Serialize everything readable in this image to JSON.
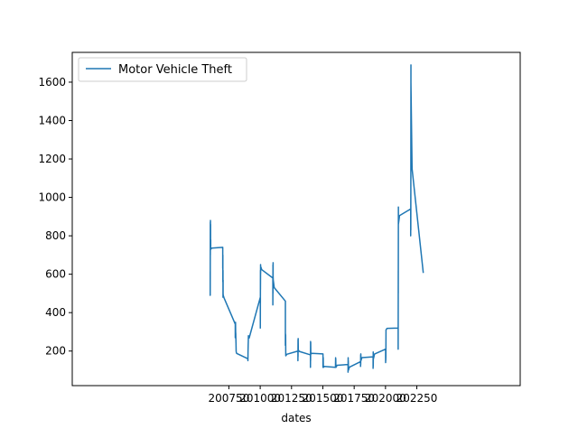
{
  "chart_data": {
    "type": "line",
    "title": "",
    "xlabel": "dates",
    "ylabel": "",
    "xlim": [
      199500,
      203075
    ],
    "ylim": [
      20,
      1755
    ],
    "x_ticks": [
      200750,
      201000,
      201250,
      201500,
      201750,
      202000,
      202250
    ],
    "x_tick_labels": [
      "200750",
      "201000",
      "201250",
      "201500",
      "201750",
      "202000",
      "202250"
    ],
    "y_ticks": [
      200,
      400,
      600,
      800,
      1000,
      1200,
      1400,
      1600
    ],
    "y_tick_labels": [
      "200",
      "400",
      "600",
      "800",
      "1000",
      "1200",
      "1400",
      "1600"
    ],
    "grid": false,
    "legend_position": "top-left",
    "series": [
      {
        "name": "Motor Vehicle Theft",
        "color": "#1f77b4",
        "x": [
          200601,
          200601,
          200602,
          200602,
          200603,
          200603,
          200604,
          200604,
          200605,
          200605,
          200606,
          200607,
          200608,
          200609,
          200610,
          200611,
          200612,
          200701,
          200701,
          200702,
          200702,
          200703,
          200703,
          200704,
          200704,
          200705,
          200706,
          200707,
          200708,
          200709,
          200710,
          200711,
          200712,
          200801,
          200801,
          200802,
          200802,
          200803,
          200804,
          200805,
          200806,
          200807,
          200808,
          200809,
          200810,
          200811,
          200812,
          200901,
          200902,
          200903,
          200904,
          200905,
          200906,
          200907,
          200908,
          200909,
          200910,
          200911,
          200912,
          201001,
          201001,
          201002,
          201002,
          201003,
          201003,
          201004,
          201005,
          201006,
          201007,
          201008,
          201009,
          201010,
          201011,
          201012,
          201101,
          201101,
          201102,
          201102,
          201103,
          201103,
          201104,
          201105,
          201106,
          201107,
          201108,
          201109,
          201110,
          201111,
          201112,
          201201,
          201201,
          201202,
          201202,
          201203,
          201204,
          201205,
          201206,
          201207,
          201208,
          201209,
          201210,
          201211,
          201212,
          201301,
          201301,
          201302,
          201302,
          201303,
          201304,
          201305,
          201306,
          201307,
          201308,
          201309,
          201310,
          201311,
          201312,
          201401,
          201401,
          201402,
          201402,
          201403,
          201404,
          201405,
          201406,
          201407,
          201408,
          201409,
          201410,
          201411,
          201412,
          201501,
          201501,
          201502,
          201502,
          201503,
          201504,
          201505,
          201506,
          201507,
          201508,
          201509,
          201510,
          201511,
          201512,
          201601,
          201601,
          201602,
          201602,
          201603,
          201604,
          201605,
          201606,
          201607,
          201608,
          201609,
          201610,
          201611,
          201612,
          201701,
          201701,
          201702,
          201702,
          201703,
          201704,
          201705,
          201706,
          201707,
          201708,
          201709,
          201710,
          201711,
          201712,
          201801,
          201801,
          201802,
          201802,
          201803,
          201804,
          201805,
          201806,
          201807,
          201808,
          201809,
          201810,
          201811,
          201812,
          201901,
          201901,
          201902,
          201902,
          201903,
          201904,
          201905,
          201906,
          201907,
          201908,
          201909,
          201910,
          201911,
          201912,
          202001,
          202001,
          202002,
          202002,
          202003,
          202004,
          202005,
          202006,
          202007,
          202008,
          202009,
          202010,
          202011,
          202012,
          202101,
          202101,
          202102,
          202102,
          202103,
          202103,
          202104,
          202105,
          202106,
          202107,
          202108,
          202109,
          202110,
          202111,
          202112,
          202201,
          202201,
          202202,
          202202,
          202203,
          202203,
          202204,
          202205,
          202206,
          202207,
          202208,
          202209,
          202210,
          202211,
          202212,
          202301
        ],
        "y": [
          610,
          490,
          870,
          700,
          880,
          740,
          860,
          730,
          780,
          735,
          730,
          731,
          732,
          733,
          734,
          735,
          736,
          740,
          630,
          700,
          560,
          620,
          480,
          570,
          500,
          490,
          488,
          486,
          484,
          482,
          480,
          478,
          476,
          340,
          270,
          340,
          280,
          350,
          300,
          290,
          260,
          240,
          200,
          195,
          192,
          190,
          188,
          160,
          150,
          200,
          230,
          250,
          280,
          278,
          276,
          274,
          272,
          270,
          268,
          480,
          320,
          620,
          520,
          650,
          600,
          640,
          638,
          636,
          634,
          632,
          630,
          628,
          626,
          624,
          580,
          440,
          650,
          500,
          660,
          590,
          570,
          565,
          560,
          555,
          550,
          545,
          540,
          535,
          530,
          460,
          230,
          290,
          240,
          285,
          175,
          176,
          177,
          178,
          179,
          180,
          181,
          182,
          183,
          200,
          150,
          260,
          170,
          265,
          205,
          205,
          204,
          203,
          202,
          201,
          200,
          199,
          198,
          180,
          115,
          250,
          150,
          245,
          185,
          185,
          185,
          186,
          186,
          187,
          187,
          188,
          188,
          185,
          115,
          170,
          130,
          165,
          115,
          115,
          116,
          117,
          118,
          119,
          119,
          120,
          120,
          115,
          130,
          165,
          120,
          160,
          115,
          116,
          117,
          118,
          119,
          120,
          122,
          124,
          126,
          130,
          90,
          165,
          100,
          150,
          100,
          102,
          104,
          106,
          108,
          110,
          112,
          114,
          116,
          145,
          120,
          180,
          130,
          185,
          150,
          152,
          154,
          156,
          158,
          160,
          162,
          164,
          166,
          170,
          110,
          195,
          120,
          175,
          160,
          163,
          166,
          169,
          172,
          175,
          178,
          181,
          184,
          210,
          140,
          175,
          150,
          170,
          310,
          311,
          312,
          313,
          314,
          315,
          316,
          317,
          318,
          320,
          210,
          620,
          500,
          950,
          860,
          865,
          870,
          875,
          880,
          885,
          890,
          895,
          900,
          905,
          940,
          800,
          1020,
          830,
          1690,
          1600,
          1550,
          1500,
          1450,
          1400,
          1350,
          1300,
          1250,
          1200,
          1150,
          610
        ]
      }
    ]
  }
}
